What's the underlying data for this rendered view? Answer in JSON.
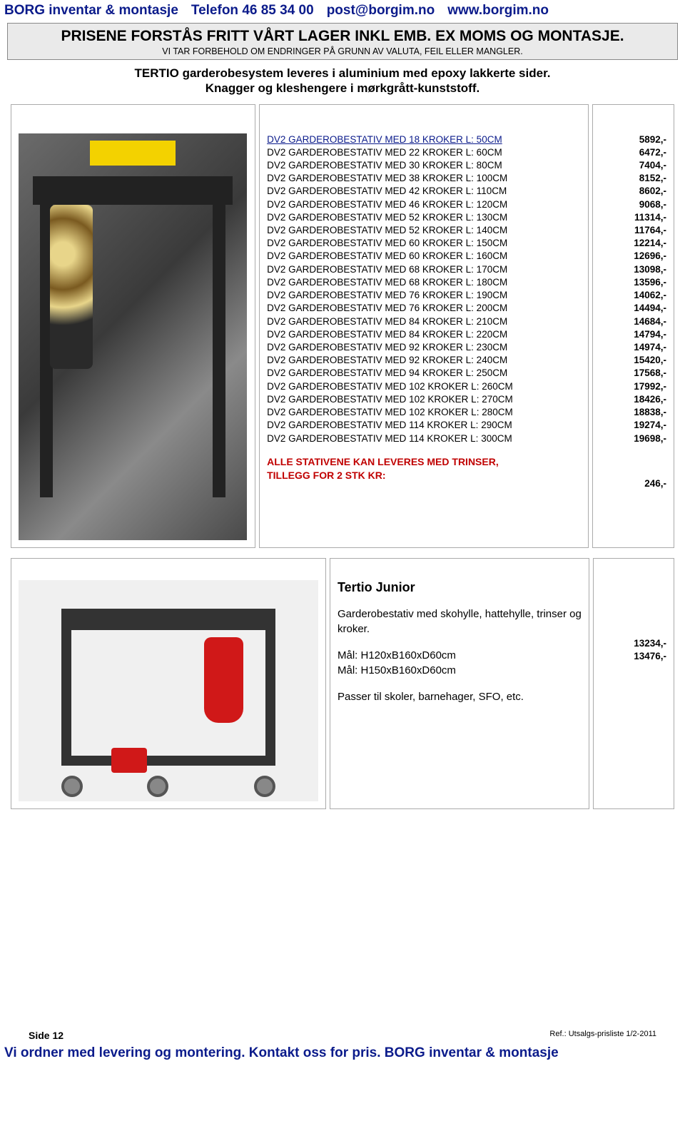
{
  "header": {
    "company": "BORG inventar & montasje",
    "phone": "Telefon 46 85 34 00",
    "email": "post@borgim.no",
    "web": "www.borgim.no"
  },
  "banner": {
    "line1": "PRISENE FORSTÅS FRITT VÅRT LAGER INKL EMB.  EX MOMS OG MONTASJE.",
    "line2": "VI TAR FORBEHOLD OM ENDRINGER PÅ GRUNN AV VALUTA, FEIL ELLER MANGLER."
  },
  "subdesc": {
    "line1": "TERTIO  garderobesystem leveres i aluminium med epoxy lakkerte sider.",
    "line2": "Knagger og  kleshengere i mørkgrått-kunststoff."
  },
  "specs": [
    "DV2 GARDEROBESTATIV  MED 18 KROKER  L:   50CM",
    "DV2 GARDEROBESTATIV  MED 22 KROKER  L:   60CM",
    "DV2 GARDEROBESTATIV  MED 30 KROKER  L:   80CM",
    "DV2 GARDEROBESTATIV  MED 38 KROKER  L: 100CM",
    "DV2 GARDEROBESTATIV  MED 42 KROKER  L: 110CM",
    "DV2 GARDEROBESTATIV  MED 46 KROKER  L: 120CM",
    "DV2 GARDEROBESTATIV  MED 52 KROKER  L: 130CM",
    "DV2 GARDEROBESTATIV  MED 52 KROKER  L: 140CM",
    "DV2 GARDEROBESTATIV  MED 60 KROKER  L: 150CM",
    "DV2 GARDEROBESTATIV  MED 60 KROKER  L: 160CM",
    "DV2 GARDEROBESTATIV  MED 68 KROKER  L: 170CM",
    "DV2 GARDEROBESTATIV  MED 68 KROKER  L: 180CM",
    "DV2 GARDEROBESTATIV  MED 76 KROKER  L: 190CM",
    "DV2 GARDEROBESTATIV  MED 76 KROKER  L: 200CM",
    "DV2 GARDEROBESTATIV  MED 84 KROKER  L: 210CM",
    "DV2 GARDEROBESTATIV  MED 84 KROKER  L: 220CM",
    "DV2 GARDEROBESTATIV  MED 92 KROKER  L: 230CM",
    "DV2 GARDEROBESTATIV  MED 92 KROKER  L: 240CM",
    "DV2 GARDEROBESTATIV  MED 94 KROKER  L: 250CM",
    "DV2 GARDEROBESTATIV  MED 102 KROKER  L: 260CM",
    "DV2 GARDEROBESTATIV  MED 102 KROKER  L: 270CM",
    "DV2 GARDEROBESTATIV  MED 102 KROKER  L: 280CM",
    "DV2 GARDEROBESTATIV  MED 114 KROKER  L: 290CM",
    "DV2 GARDEROBESTATIV  MED 114 KROKER  L: 300CM"
  ],
  "addon": {
    "line1": "ALLE STATIVENE KAN LEVERES MED TRINSER,",
    "line2": "TILLEGG FOR 2 STK KR:"
  },
  "prices": [
    "5892,-",
    "6472,-",
    "7404,-",
    "8152,-",
    "8602,-",
    "9068,-",
    "11314,-",
    "11764,-",
    "12214,-",
    "12696,-",
    "13098,-",
    "13596,-",
    "14062,-",
    "14494,-",
    "14684,-",
    "14794,-",
    "14974,-",
    "15420,-",
    "17568,-",
    "17992,-",
    "18426,-",
    "18838,-",
    "19274,-",
    "19698,-"
  ],
  "addon_price": "246,-",
  "product2": {
    "title": "Tertio Junior",
    "desc": "Garderobestativ med skohylle, hattehylle, trinser og kroker.",
    "meas1": "Mål: H120xB160xD60cm",
    "meas2": "Mål: H150xB160xD60cm",
    "note": "Passer til skoler, barnehager, SFO, etc.",
    "prices": [
      "13234,-",
      "13476,-"
    ]
  },
  "footer": {
    "page": "Side 12",
    "ref": "Ref.: Utsalgs-prisliste 1/2-2011",
    "line": "Vi ordner med levering og montering. Kontakt oss for pris.  BORG inventar & montasje"
  }
}
